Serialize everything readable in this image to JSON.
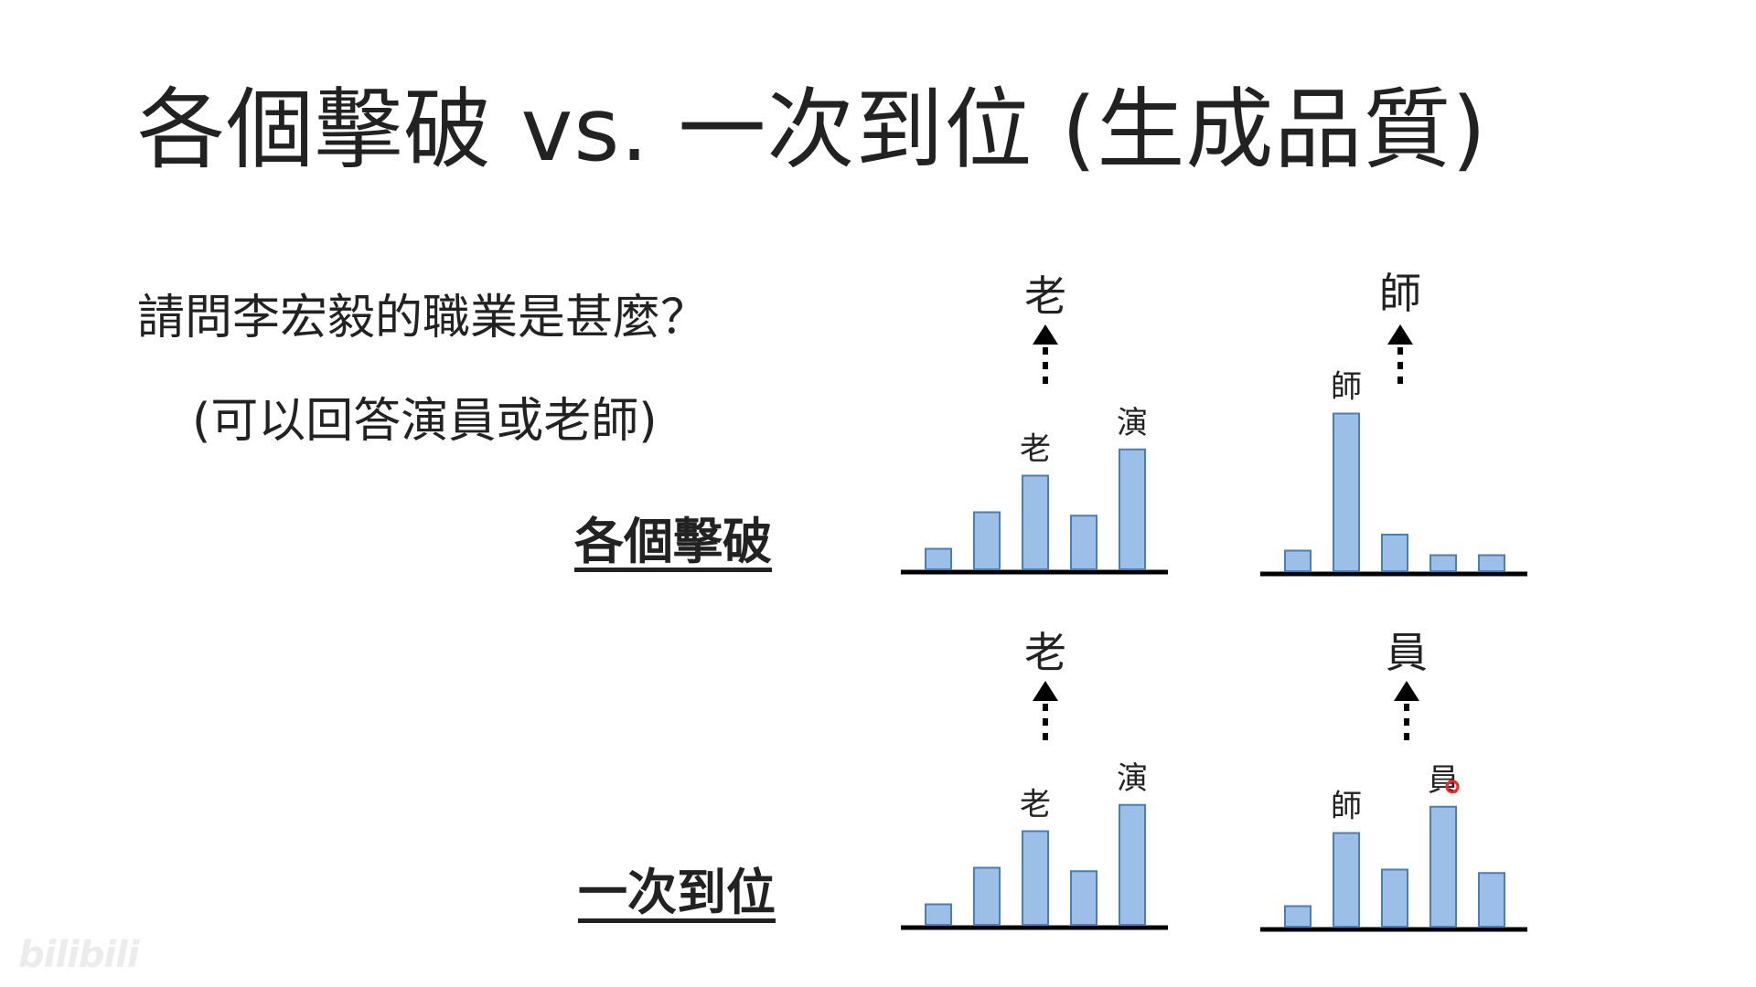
{
  "slide": {
    "title": "各個擊破 vs. 一次到位 (生成品質)",
    "question": "請問李宏毅的職業是甚麼？",
    "hint": "(可以回答演員或老師)"
  },
  "rows": [
    {
      "label": "各個擊破"
    },
    {
      "label": "一次到位"
    }
  ],
  "watermark": "bilibili",
  "colors": {
    "bar_fill": "#9bbfe6",
    "bar_stroke": "#4a7ebb",
    "axis": "#000000",
    "cursor": "#ff2020"
  },
  "chart_data": [
    {
      "type": "bar",
      "row": "各個擊破",
      "values": [
        18,
        50,
        82,
        47,
        105
      ],
      "bar_labels": [
        "",
        "",
        "老",
        "",
        "演"
      ],
      "output": "老",
      "ylim": [
        0,
        160
      ]
    },
    {
      "type": "bar",
      "row": "各個擊破",
      "values": [
        18,
        138,
        32,
        14,
        14
      ],
      "bar_labels": [
        "",
        "師",
        "",
        "",
        ""
      ],
      "output": "師",
      "ylim": [
        0,
        160
      ]
    },
    {
      "type": "bar",
      "row": "一次到位",
      "values": [
        18,
        50,
        82,
        47,
        105
      ],
      "bar_labels": [
        "",
        "",
        "老",
        "",
        "演"
      ],
      "output": "老",
      "ylim": [
        0,
        160
      ]
    },
    {
      "type": "bar",
      "row": "一次到位",
      "values": [
        18,
        82,
        50,
        105,
        47
      ],
      "bar_labels": [
        "",
        "師",
        "",
        "員",
        ""
      ],
      "output": "員",
      "ylim": [
        0,
        160
      ]
    }
  ]
}
